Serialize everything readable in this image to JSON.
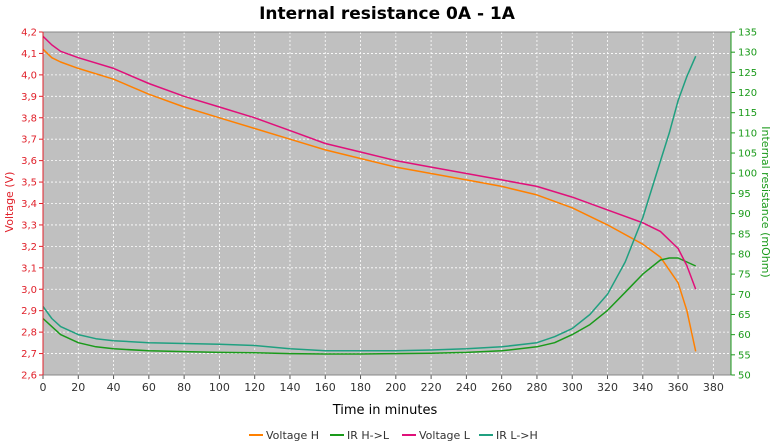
{
  "chart_data": {
    "type": "line",
    "title": "Internal resistance  0A - 1A",
    "xlabel": "Time in minutes",
    "ylabel_left": "Voltage (V)",
    "ylabel_right": "Internal resistance (mOhm)",
    "xlim": [
      0,
      390
    ],
    "ylim_left": [
      2.6,
      4.2
    ],
    "ylim_right": [
      50,
      135
    ],
    "x_ticks": [
      "0",
      "20",
      "40",
      "60",
      "80",
      "100",
      "120",
      "140",
      "160",
      "180",
      "200",
      "220",
      "240",
      "260",
      "280",
      "300",
      "320",
      "340",
      "360",
      "380"
    ],
    "y_left_ticks": [
      "2,6",
      "2,7",
      "2,8",
      "2,9",
      "3,0",
      "3,1",
      "3,2",
      "3,3",
      "3,4",
      "3,5",
      "3,6",
      "3,7",
      "3,8",
      "3,9",
      "4,0",
      "4,1",
      "4,2"
    ],
    "y_right_ticks": [
      "50",
      "55",
      "60",
      "65",
      "70",
      "75",
      "80",
      "85",
      "90",
      "95",
      "100",
      "105",
      "110",
      "115",
      "120",
      "125",
      "130",
      "135"
    ],
    "grid": true,
    "legend_position": "bottom",
    "colors": {
      "voltage_h": "#ff8000",
      "ir_h_l": "#1a9a1a",
      "voltage_l": "#e0107a",
      "ir_l_h": "#20a080",
      "plot_bg": "#c0c0c0",
      "left_axis": "#e0202a",
      "right_axis": "#1a9a1a"
    },
    "series": [
      {
        "name": "Voltage H",
        "axis": "left",
        "x": [
          0,
          5,
          10,
          20,
          40,
          60,
          80,
          100,
          120,
          140,
          160,
          180,
          200,
          220,
          240,
          260,
          280,
          300,
          320,
          340,
          350,
          360,
          365,
          370
        ],
        "y": [
          4.12,
          4.08,
          4.06,
          4.03,
          3.98,
          3.91,
          3.85,
          3.8,
          3.75,
          3.7,
          3.65,
          3.61,
          3.57,
          3.54,
          3.51,
          3.48,
          3.44,
          3.38,
          3.3,
          3.21,
          3.15,
          3.03,
          2.9,
          2.71
        ]
      },
      {
        "name": "IR H->L",
        "axis": "right",
        "x": [
          0,
          5,
          10,
          20,
          30,
          40,
          60,
          80,
          100,
          120,
          140,
          160,
          180,
          200,
          220,
          240,
          260,
          280,
          290,
          300,
          310,
          320,
          330,
          340,
          350,
          355,
          360,
          365,
          370
        ],
        "y": [
          64,
          62,
          60,
          58,
          57,
          56.5,
          56,
          55.8,
          55.6,
          55.5,
          55.3,
          55.2,
          55.2,
          55.3,
          55.4,
          55.6,
          56,
          57,
          58,
          60,
          62.5,
          66,
          70.5,
          75,
          78.5,
          79,
          79,
          78,
          77
        ]
      },
      {
        "name": "Voltage L",
        "axis": "left",
        "x": [
          0,
          5,
          10,
          20,
          40,
          60,
          80,
          100,
          120,
          140,
          160,
          180,
          200,
          220,
          240,
          260,
          280,
          300,
          320,
          340,
          350,
          360,
          365,
          370
        ],
        "y": [
          4.18,
          4.14,
          4.11,
          4.08,
          4.03,
          3.96,
          3.9,
          3.85,
          3.8,
          3.74,
          3.68,
          3.64,
          3.6,
          3.57,
          3.54,
          3.51,
          3.48,
          3.43,
          3.37,
          3.31,
          3.27,
          3.19,
          3.11,
          3.0
        ]
      },
      {
        "name": "IR L->H",
        "axis": "right",
        "x": [
          0,
          5,
          10,
          20,
          30,
          40,
          60,
          80,
          100,
          120,
          140,
          160,
          180,
          200,
          220,
          240,
          260,
          280,
          290,
          300,
          310,
          320,
          330,
          340,
          350,
          355,
          360,
          365,
          370
        ],
        "y": [
          67,
          64,
          62,
          60,
          59,
          58.5,
          58,
          57.8,
          57.6,
          57.3,
          56.5,
          56,
          56,
          56,
          56.2,
          56.5,
          57,
          58,
          59.5,
          61.5,
          65,
          70,
          78,
          89,
          103,
          110,
          118,
          124,
          129
        ]
      }
    ]
  }
}
